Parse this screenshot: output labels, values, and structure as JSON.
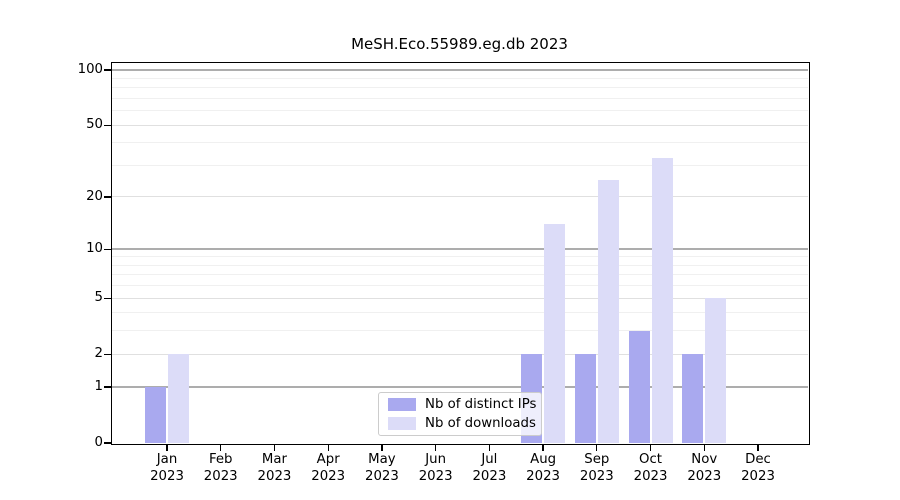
{
  "chart_data": {
    "type": "bar",
    "title": "MeSH.Eco.55989.eg.db 2023",
    "categories": [
      "Jan",
      "Feb",
      "Mar",
      "Apr",
      "May",
      "Jun",
      "Jul",
      "Aug",
      "Sep",
      "Oct",
      "Nov",
      "Dec"
    ],
    "year": "2023",
    "series": [
      {
        "name": "Nb of distinct IPs",
        "color": "#a9a9ef",
        "values": [
          1,
          0,
          0,
          0,
          0,
          0,
          0,
          2,
          2,
          3,
          2,
          0
        ]
      },
      {
        "name": "Nb of downloads",
        "color": "#dcdcf8",
        "values": [
          2,
          0,
          0,
          0,
          0,
          0,
          0,
          14,
          25,
          33,
          5,
          0
        ]
      }
    ],
    "y_axis": {
      "scale": "log10(1+x)",
      "ticks": [
        0,
        1,
        2,
        5,
        10,
        20,
        50,
        100
      ],
      "minor_gridlines": [
        3,
        4,
        6,
        7,
        8,
        9,
        30,
        40,
        60,
        70,
        80,
        90
      ],
      "range": [
        0,
        110
      ]
    },
    "xlabel": "",
    "ylabel": "",
    "grid": true,
    "legend_position": "bottom-center"
  },
  "colors": {
    "decade_gridline": "#adadad",
    "major_gridline": "#e0e0e0",
    "minor_gridline": "#f0f0f0",
    "axis": "#000000"
  }
}
